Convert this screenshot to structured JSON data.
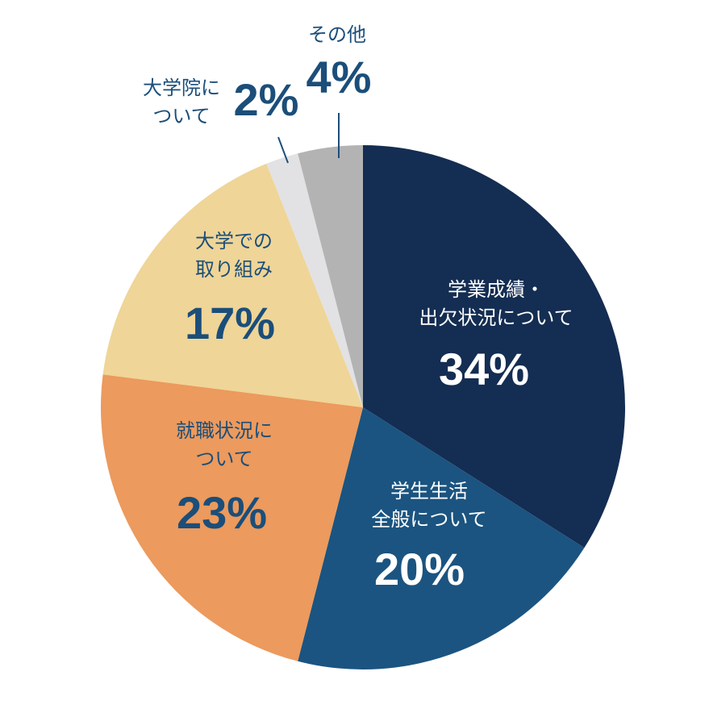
{
  "chart_data": {
    "type": "pie",
    "categories": [
      [
        "学業成績・",
        "出欠状況について"
      ],
      [
        "学生生活",
        "全般について"
      ],
      [
        "就職状況に",
        "ついて"
      ],
      [
        "大学での",
        "取り組み"
      ],
      [
        "大学院に",
        "ついて"
      ],
      [
        "その他"
      ]
    ],
    "values": [
      34,
      20,
      23,
      17,
      2,
      4
    ],
    "value_labels": [
      "34%",
      "20%",
      "23%",
      "17%",
      "2%",
      "4%"
    ],
    "colors": [
      "#142d52",
      "#1b5480",
      "#ec9a5d",
      "#efd597",
      "#e2e2e4",
      "#b3b3b3"
    ]
  }
}
